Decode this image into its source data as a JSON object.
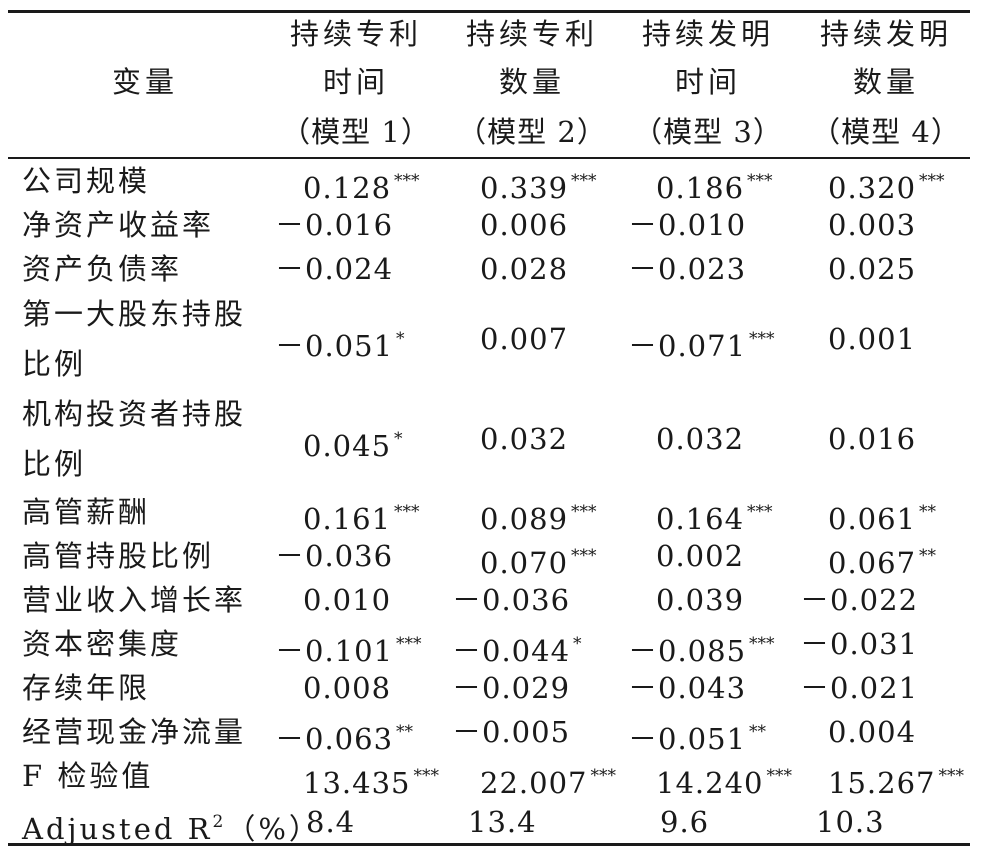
{
  "header": {
    "variable": "变量",
    "models": [
      {
        "line1": "持续专利",
        "line2": "时间",
        "line3": "（模型 1）"
      },
      {
        "line1": "持续专利",
        "line2": "数量",
        "line3": "（模型 2）"
      },
      {
        "line1": "持续发明",
        "line2": "时间",
        "line3": "（模型 3）"
      },
      {
        "line1": "持续发明",
        "line2": "数量",
        "line3": "（模型 4）"
      }
    ]
  },
  "rows": [
    {
      "label": [
        "公司规模"
      ],
      "values": [
        {
          "v": "0.128",
          "s": "***"
        },
        {
          "v": "0.339",
          "s": "***"
        },
        {
          "v": "0.186",
          "s": "***"
        },
        {
          "v": "0.320",
          "s": "***"
        }
      ]
    },
    {
      "label": [
        "净资产收益率"
      ],
      "values": [
        {
          "v": "－0.016",
          "s": ""
        },
        {
          "v": "0.006",
          "s": ""
        },
        {
          "v": "－0.010",
          "s": ""
        },
        {
          "v": "0.003",
          "s": ""
        }
      ]
    },
    {
      "label": [
        "资产负债率"
      ],
      "values": [
        {
          "v": "－0.024",
          "s": ""
        },
        {
          "v": "0.028",
          "s": ""
        },
        {
          "v": "－0.023",
          "s": ""
        },
        {
          "v": "0.025",
          "s": ""
        }
      ]
    },
    {
      "label": [
        "第一大股东持股",
        "比例"
      ],
      "values": [
        {
          "v": "－0.051",
          "s": "*"
        },
        {
          "v": "0.007",
          "s": ""
        },
        {
          "v": "－0.071",
          "s": "***"
        },
        {
          "v": "0.001",
          "s": ""
        }
      ]
    },
    {
      "label": [
        "机构投资者持股",
        "比例"
      ],
      "values": [
        {
          "v": "0.045",
          "s": "*"
        },
        {
          "v": "0.032",
          "s": ""
        },
        {
          "v": "0.032",
          "s": ""
        },
        {
          "v": "0.016",
          "s": ""
        }
      ]
    },
    {
      "label": [
        "高管薪酬"
      ],
      "values": [
        {
          "v": "0.161",
          "s": "***"
        },
        {
          "v": "0.089",
          "s": "***"
        },
        {
          "v": "0.164",
          "s": "***"
        },
        {
          "v": "0.061",
          "s": "**"
        }
      ]
    },
    {
      "label": [
        "高管持股比例"
      ],
      "values": [
        {
          "v": "－0.036",
          "s": ""
        },
        {
          "v": "0.070",
          "s": "***"
        },
        {
          "v": "0.002",
          "s": ""
        },
        {
          "v": "0.067",
          "s": "**"
        }
      ]
    },
    {
      "label": [
        "营业收入增长率"
      ],
      "values": [
        {
          "v": "0.010",
          "s": ""
        },
        {
          "v": "－0.036",
          "s": ""
        },
        {
          "v": "0.039",
          "s": ""
        },
        {
          "v": "－0.022",
          "s": ""
        }
      ]
    },
    {
      "label": [
        "资本密集度"
      ],
      "values": [
        {
          "v": "－0.101",
          "s": "***"
        },
        {
          "v": "－0.044",
          "s": "*"
        },
        {
          "v": "－0.085",
          "s": "***"
        },
        {
          "v": "－0.031",
          "s": ""
        }
      ]
    },
    {
      "label": [
        "存续年限"
      ],
      "values": [
        {
          "v": "0.008",
          "s": ""
        },
        {
          "v": "－0.029",
          "s": ""
        },
        {
          "v": "－0.043",
          "s": ""
        },
        {
          "v": "－0.021",
          "s": ""
        }
      ]
    },
    {
      "label": [
        "经营现金净流量"
      ],
      "values": [
        {
          "v": "－0.063",
          "s": "**"
        },
        {
          "v": "－0.005",
          "s": ""
        },
        {
          "v": "－0.051",
          "s": "**"
        },
        {
          "v": "0.004",
          "s": ""
        }
      ]
    },
    {
      "label": [
        "F 检验值"
      ],
      "values": [
        {
          "v": "13.435",
          "s": "***"
        },
        {
          "v": "22.007",
          "s": "***"
        },
        {
          "v": "14.240",
          "s": "***"
        },
        {
          "v": "15.267",
          "s": "***"
        }
      ]
    }
  ],
  "r2_row": {
    "label_prefix": "Adjusted R",
    "label_sup": "2",
    "label_suffix": "（%）",
    "values": [
      "8.4",
      "13.4",
      "9.6",
      "10.3"
    ]
  }
}
